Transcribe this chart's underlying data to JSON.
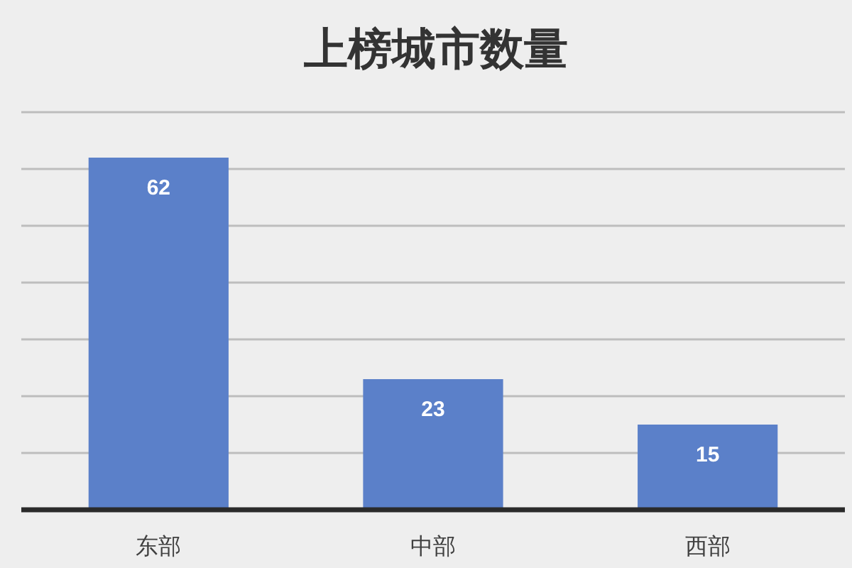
{
  "chart_data": {
    "type": "bar",
    "title": "上榜城市数量",
    "categories": [
      "东部",
      "中部",
      "西部"
    ],
    "values": [
      62,
      23,
      15
    ],
    "color": "#5b80c9",
    "ylim": [
      0,
      70
    ],
    "yticks": [
      {
        "value": 0,
        "label": null
      },
      {
        "value": 10,
        "label": null
      },
      {
        "value": 20,
        "label": null
      },
      {
        "value": 30,
        "label": null
      },
      {
        "value": 40,
        "label": null
      },
      {
        "value": 50,
        "label": null
      },
      {
        "value": 60,
        "label": null
      },
      {
        "value": 70,
        "label": null
      }
    ],
    "grid": "y",
    "tick_labels": "x",
    "data_labels": true
  }
}
